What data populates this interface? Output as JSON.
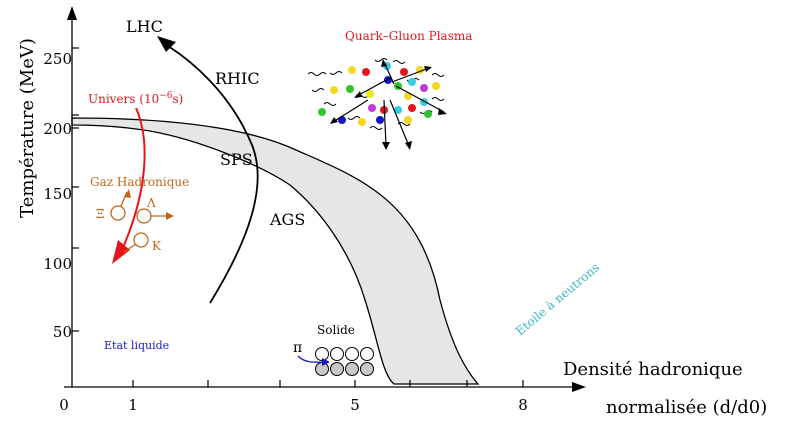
{
  "axes": {
    "ylabel": "Température (MeV)",
    "xlabel_line1": "Densité hadronique",
    "xlabel_line2": "normalisée (d/d0)",
    "y_ticks": [
      "50",
      "100",
      "150",
      "200",
      "250"
    ],
    "x_ticks": [
      "0",
      "1",
      "5",
      "8"
    ]
  },
  "labels": {
    "lhc": "LHC",
    "rhic": "RHIC",
    "sps": "SPS",
    "ags": "AGS",
    "qgp": "Quark–Gluon Plasma",
    "univers": "Univers (10",
    "univers_exp": "−6",
    "univers_end": "s)",
    "gaz": "Gaz Hadronique",
    "etat": "Etat liquide",
    "solide": "Solide",
    "etoile": "Etoile à neutrons",
    "xi": "Ξ",
    "lambda": "Λ",
    "kaon": "K",
    "pi": "π"
  },
  "colors": {
    "axis": "#000000",
    "band_fill": "#e6e6e6",
    "univers": "#e8141b",
    "gaz": "#c0661a",
    "etat": "#1717c8",
    "qgp": "#e8141b",
    "etoile": "#3cb6c8",
    "solid_ball": "#c8c8c8"
  }
}
